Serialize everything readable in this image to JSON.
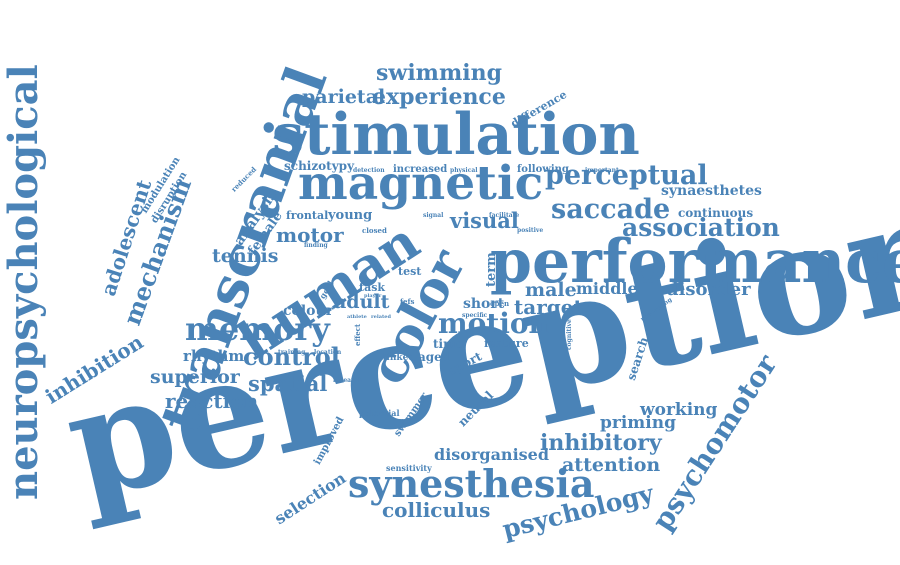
{
  "accent_color": "#4a83b7",
  "words": {
    "perception": "perception",
    "performance": "performance",
    "stimulation": "stimulation",
    "transcranial": "transcranial",
    "magnetic": "magnetic",
    "human": "human",
    "color": "color",
    "neuropsychological": "neuropsychological",
    "synesthesia": "synesthesia",
    "memory": "memory",
    "perceptual": "perceptual",
    "saccade": "saccade",
    "association": "association",
    "motion": "motion",
    "psychomotor": "psychomotor",
    "psychology": "psychology",
    "experience": "experience",
    "swimming": "swimming",
    "control": "control",
    "inhibitory": "inhibitory",
    "mechanism": "mechanism",
    "adolescent": "adolescent",
    "parietal": "parietal",
    "superior": "superior",
    "spatial": "spatial",
    "reaction": "reaction",
    "colliculus": "colliculus",
    "inhibition": "inhibition",
    "attention": "attention",
    "working": "working",
    "priming": "priming",
    "disorder": "disorder",
    "target": "target",
    "male": "male",
    "middle": "middle",
    "visual": "visual",
    "motor": "motor",
    "tennis": "tennis",
    "adult": "adult",
    "colour": "colour",
    "rhythm": "rhythm",
    "disorganised": "disorganised",
    "selection": "selection",
    "synaesthetes": "synaesthetes",
    "continuous": "continuous",
    "analysis": "analysis",
    "female": "female",
    "modulation": "modulation",
    "disruption": "disruption",
    "schizotypy": "schizotypy",
    "young": "young",
    "frontal": "frontal",
    "term": "term",
    "short": "short",
    "time": "time",
    "aged": "aged",
    "sport": "sport",
    "feature": "feature",
    "neural": "neural",
    "search": "search",
    "swimmer": "swimmer",
    "improved": "improved",
    "difference": "difference",
    "increased": "increased",
    "following": "following",
    "task": "task",
    "test": "test",
    "goal": "goal",
    "potential": "potential",
    "sensitivity": "sensitivity",
    "linked": "linked",
    "effect": "effect",
    "reduced": "reduced",
    "detection": "detection",
    "physical": "physical",
    "important": "important",
    "facilitate": "facilitate",
    "positive": "positive",
    "signal": "signal",
    "closed": "closed",
    "finding": "finding",
    "training": "training",
    "location": "location",
    "research": "research",
    "fefs": "fefs",
    "player": "player",
    "athlete": "athlete",
    "related": "related",
    "open": "open",
    "specific": "specific",
    "processing": "processing",
    "cognitive": "cognitive"
  }
}
